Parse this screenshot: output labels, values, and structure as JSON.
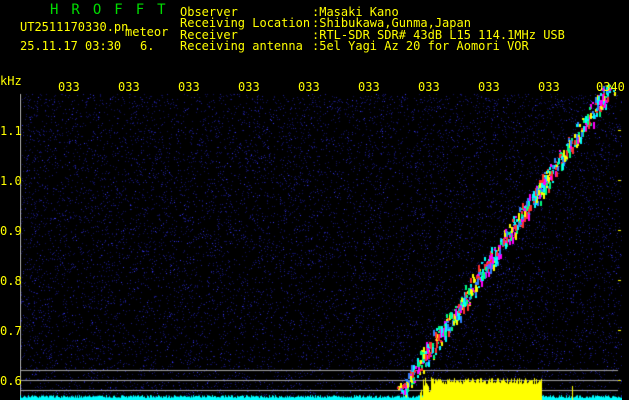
{
  "app": {
    "title": "HROFFT"
  },
  "file": {
    "name": "UT2511170330.pn",
    "mode": "meteor",
    "datetime": "25.11.17 03:30",
    "count": "6."
  },
  "info": [
    {
      "label": "Observer",
      "value": ":Masaki Kano"
    },
    {
      "label": "Receiving Location",
      "value": ":Shibukawa,Gunma,Japan"
    },
    {
      "label": "Receiver",
      "value": ":RTL-SDR SDR# 43dB L15 114.1MHz USB"
    },
    {
      "label": "Receiving antenna",
      "value": ":5el Yagi Az 20 for Aomori VOR"
    }
  ],
  "axis": {
    "y_unit": "kHz",
    "y_ticks": [
      "1.1",
      "1.0",
      "0.9",
      "0.8",
      "0.7",
      "0.6"
    ],
    "x_ticks": [
      "0331",
      "0332",
      "0333",
      "0334",
      "0335",
      "0336",
      "0337",
      "0338",
      "0339",
      "0340"
    ]
  },
  "colors": {
    "text": "#ffff00",
    "title": "#00dd00",
    "background_noise": "#1a1a8c",
    "baseline": "#00ffff",
    "signal_bar": "#ffff00",
    "guide_lines": "#a0a0a0"
  }
}
